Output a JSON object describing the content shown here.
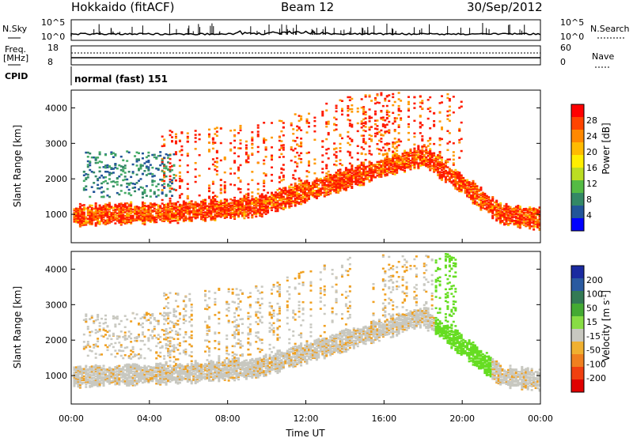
{
  "header": {
    "station": "Hokkaido (fitACF)",
    "beam": "Beam 12",
    "date": "30/Sep/2012"
  },
  "top_panels": {
    "nsky_label": "N.Sky",
    "nsky_ticks": [
      "10^5",
      "10^0"
    ],
    "nsky_right_ticks": [
      "10^5",
      "10^0"
    ],
    "nsearch_label": "N.Search",
    "freq_label_1": "Freq.",
    "freq_label_2": "[MHz]",
    "freq_ticks": [
      "18",
      "8"
    ],
    "nave_ticks": [
      "60",
      "0"
    ],
    "nave_label": "Nave",
    "cpid_label": "CPID",
    "cpid_value": "normal (fast) 151"
  },
  "chart_data": [
    {
      "type": "heatmap",
      "name": "power",
      "ylabel": "Slant Range [km]",
      "yticks": [
        "1000",
        "2000",
        "3000",
        "4000"
      ],
      "ylim": [
        200,
        4500
      ],
      "xlim": [
        0,
        24
      ],
      "colorbar_label": "Power [dB]",
      "colorbar_ticks": [
        "28",
        "24",
        "20",
        "16",
        "12",
        "8",
        "4"
      ],
      "colorbar_colors": [
        "#ff0000",
        "#ff4400",
        "#ff8800",
        "#ffbb00",
        "#ffee00",
        "#bbdd22",
        "#55bb44",
        "#338866",
        "#225599",
        "#0000ff"
      ]
    },
    {
      "type": "heatmap",
      "name": "velocity",
      "ylabel": "Slant Range [km]",
      "yticks": [
        "1000",
        "2000",
        "3000",
        "4000"
      ],
      "ylim": [
        200,
        4500
      ],
      "xlim": [
        0,
        24
      ],
      "xlabel": "Time UT",
      "xticks": [
        "00:00",
        "04:00",
        "08:00",
        "12:00",
        "16:00",
        "20:00",
        "00:00"
      ],
      "colorbar_label_main": "Velocity [m s",
      "colorbar_label_exp": "-1",
      "colorbar_label_close": "]",
      "colorbar_ticks": [
        "200",
        "100",
        "50",
        "15",
        "-15",
        "-50",
        "-100",
        "-200"
      ],
      "colorbar_colors": [
        "#1a2aa0",
        "#2a5aa0",
        "#337a55",
        "#44aa33",
        "#88dd44",
        "#c8c8c0",
        "#f0b030",
        "#f08020",
        "#f04010",
        "#e00000"
      ]
    }
  ]
}
